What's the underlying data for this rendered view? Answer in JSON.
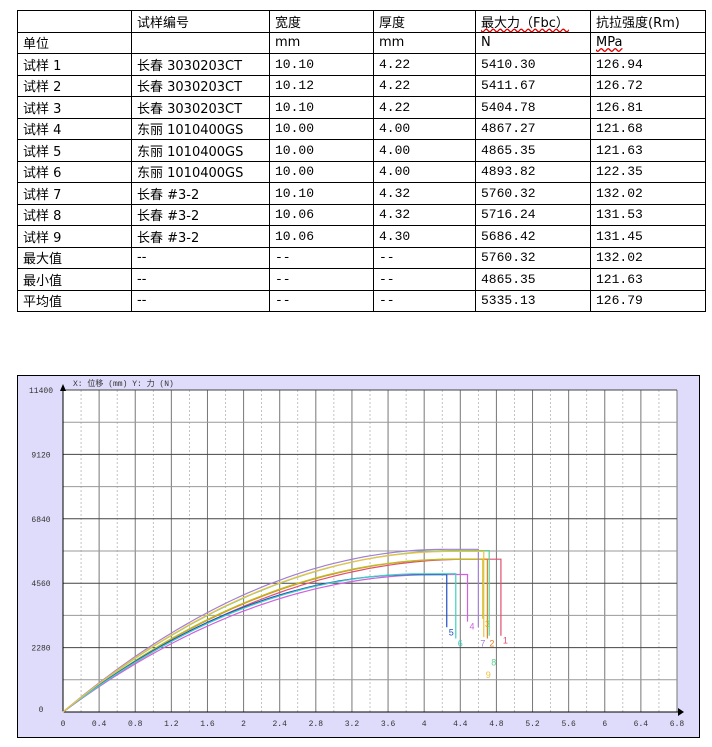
{
  "table": {
    "headers": [
      "",
      "试样编号",
      "宽度",
      "厚度",
      "最大力（Fbc）",
      "抗拉强度(Rm)"
    ],
    "units": [
      "单位",
      "",
      "mm",
      "mm",
      "N",
      "MPa"
    ],
    "rows": [
      [
        "试样 1",
        "长春 3030203CT",
        "10.10",
        "4.22",
        "5410.30",
        "126.94"
      ],
      [
        "试样 2",
        "长春 3030203CT",
        "10.12",
        "4.22",
        "5411.67",
        "126.72"
      ],
      [
        "试样 3",
        "长春 3030203CT",
        "10.10",
        "4.22",
        "5404.78",
        "126.81"
      ],
      [
        "试样 4",
        "东丽 1010400GS",
        "10.00",
        "4.00",
        "4867.27",
        "121.68"
      ],
      [
        "试样 5",
        "东丽 1010400GS",
        "10.00",
        "4.00",
        "4865.35",
        "121.63"
      ],
      [
        "试样 6",
        "东丽 1010400GS",
        "10.00",
        "4.00",
        "4893.82",
        "122.35"
      ],
      [
        "试样 7",
        "长春 #3-2",
        "10.10",
        "4.32",
        "5760.32",
        "132.02"
      ],
      [
        "试样 8",
        "长春 #3-2",
        "10.06",
        "4.32",
        "5716.24",
        "131.53"
      ],
      [
        "试样 9",
        "长春 #3-2",
        "10.06",
        "4.30",
        "5686.42",
        "131.45"
      ],
      [
        "最大值",
        "--",
        "--",
        "--",
        "5760.32",
        "132.02"
      ],
      [
        "最小值",
        "--",
        "--",
        "--",
        "4865.35",
        "121.63"
      ],
      [
        "平均值",
        "--",
        "--",
        "--",
        "5335.13",
        "126.79"
      ]
    ]
  },
  "chart_data": {
    "type": "line",
    "title": "X: 位移 (mm)   Y: 力 (N)",
    "xlim": [
      0,
      6.8
    ],
    "ylim": [
      0,
      11400
    ],
    "xticks": [
      "0",
      "0.4",
      "0.8",
      "1.2",
      "1.6",
      "2",
      "2.4",
      "2.8",
      "3.2",
      "3.6",
      "4",
      "4.4",
      "4.8",
      "5.2",
      "5.6",
      "6",
      "6.4",
      "6.8"
    ],
    "yticks": [
      "0",
      "2280",
      "4560",
      "6840",
      "9120",
      "11400"
    ],
    "grid": true,
    "series": [
      {
        "name": "1",
        "peak": 5410,
        "break_x": 4.85,
        "end_force": 2700,
        "color": "#e05070"
      },
      {
        "name": "2",
        "peak": 5412,
        "break_x": 4.7,
        "end_force": 2600,
        "color": "#e08020"
      },
      {
        "name": "3",
        "peak": 5405,
        "break_x": 4.65,
        "end_force": 3300,
        "color": "#b8c020"
      },
      {
        "name": "4",
        "peak": 4867,
        "break_x": 4.48,
        "end_force": 3200,
        "color": "#d060e0"
      },
      {
        "name": "5",
        "peak": 4865,
        "break_x": 4.25,
        "end_force": 3000,
        "color": "#2050c0"
      },
      {
        "name": "6",
        "peak": 4894,
        "break_x": 4.35,
        "end_force": 2600,
        "color": "#40d0c0"
      },
      {
        "name": "7",
        "peak": 5760,
        "break_x": 4.6,
        "end_force": 3000,
        "color": "#a080d0"
      },
      {
        "name": "8",
        "peak": 5716,
        "break_x": 4.72,
        "end_force": 2700,
        "color": "#60d090"
      },
      {
        "name": "9",
        "peak": 5686,
        "break_x": 4.66,
        "end_force": 2650,
        "color": "#f0c040"
      }
    ]
  }
}
